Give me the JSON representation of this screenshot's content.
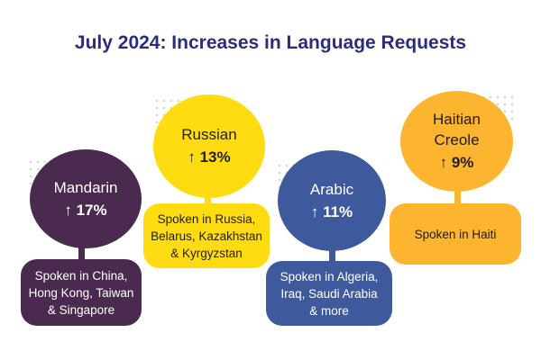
{
  "title": "July 2024: Increases in Language Requests",
  "colors": {
    "title": "#2b2d7c",
    "mandarin": "#4a2a4f",
    "russian": "#ffdc12",
    "arabic": "#3f5a9c",
    "haitian_creole": "#fdb52f"
  },
  "languages": [
    {
      "name": "Mandarin",
      "increase": "↑ 17%",
      "spoken_in": [
        "Spoken in China,",
        "Hong Kong, Taiwan",
        "& Singapore"
      ]
    },
    {
      "name": "Russian",
      "increase": "↑ 13%",
      "spoken_in": [
        "Spoken in Russia,",
        "Belarus, Kazakhstan",
        "& Kyrgyzstan"
      ]
    },
    {
      "name": "Arabic",
      "increase": "↑ 11%",
      "spoken_in": [
        "Spoken in Algeria,",
        "Iraq, Saudi Arabia",
        "& more"
      ]
    },
    {
      "name_lines": [
        "Haitian",
        "Creole"
      ],
      "increase": "↑ 9%",
      "spoken_in": [
        "Spoken in Haiti"
      ]
    }
  ]
}
